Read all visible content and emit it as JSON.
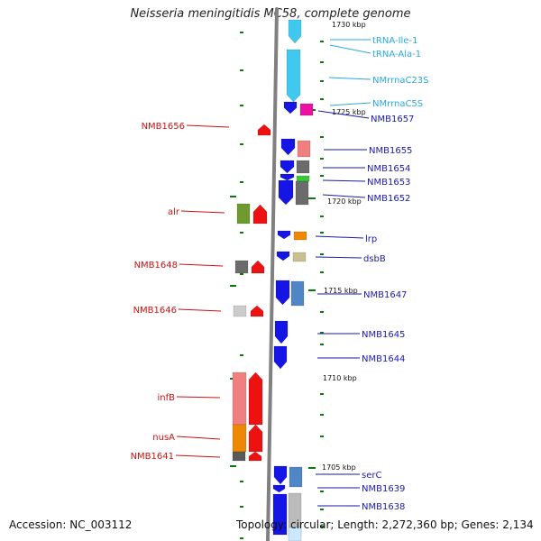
{
  "title": "Neisseria meningitidis MC58, complete genome",
  "footer": {
    "accession": "Accession: NC_003112",
    "topology": "Topology: circular; Length: 2,272,360 bp; Genes: 2,134"
  },
  "colors": {
    "backbone": "#808080",
    "tick": "#0a7a0a",
    "gene_blue": "#1515e6",
    "gene_red": "#ee1111",
    "rna_cyan": "#40c8ee",
    "label_blue": "#1a1aa8",
    "label_red": "#cc1111",
    "label_cyan": "#2aa8dd",
    "magenta": "#ee10a0"
  },
  "kbp_marks": [
    "1730 kbp",
    "1725 kbp",
    "1720 kbp",
    "1715 kbp",
    "1710 kbp",
    "1705 kbp"
  ],
  "labels_right": [
    {
      "text": "tRNA-Ile-1",
      "color": "cyan"
    },
    {
      "text": "tRNA-Ala-1",
      "color": "cyan"
    },
    {
      "text": "NMrrnaC23S",
      "color": "cyan"
    },
    {
      "text": "NMrrnaC5S",
      "color": "cyan"
    },
    {
      "text": "NMB1657",
      "color": "blue"
    },
    {
      "text": "NMB1655",
      "color": "blue"
    },
    {
      "text": "NMB1654",
      "color": "blue"
    },
    {
      "text": "NMB1653",
      "color": "blue"
    },
    {
      "text": "NMB1652",
      "color": "blue"
    },
    {
      "text": "lrp",
      "color": "blue"
    },
    {
      "text": "dsbB",
      "color": "blue"
    },
    {
      "text": "NMB1647",
      "color": "blue"
    },
    {
      "text": "NMB1645",
      "color": "blue"
    },
    {
      "text": "NMB1644",
      "color": "blue"
    },
    {
      "text": "serC",
      "color": "blue"
    },
    {
      "text": "NMB1639",
      "color": "blue"
    },
    {
      "text": "NMB1638",
      "color": "blue"
    }
  ],
  "labels_left": [
    {
      "text": "NMB1656",
      "color": "red"
    },
    {
      "text": "alr",
      "color": "red"
    },
    {
      "text": "NMB1648",
      "color": "red"
    },
    {
      "text": "NMB1646",
      "color": "red"
    },
    {
      "text": "infB",
      "color": "red"
    },
    {
      "text": "nusA",
      "color": "red"
    },
    {
      "text": "NMB1641",
      "color": "red"
    }
  ]
}
